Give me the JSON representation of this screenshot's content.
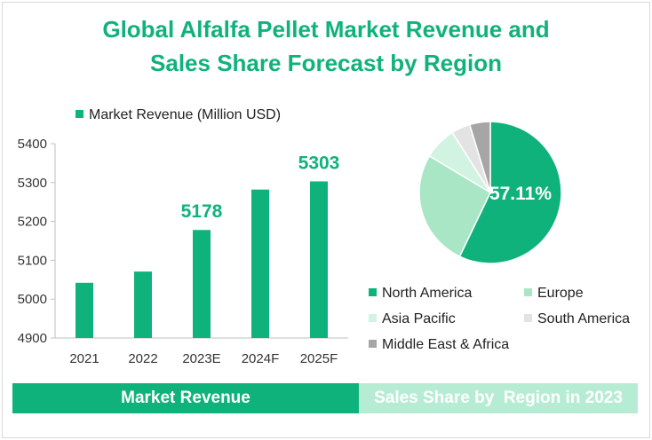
{
  "title_lines": [
    "Global Alfalfa Pellet Market Revenue and",
    "Sales Share Forecast by Region"
  ],
  "footer": {
    "left_label": "Market Revenue",
    "right_label": "Sales Share by  Region in 2023"
  },
  "colors": {
    "accent": "#10b27c",
    "accent_light": "#b7ecd4"
  },
  "chart_data": [
    {
      "type": "bar",
      "categories": [
        "2021",
        "2022",
        "2023E",
        "2024F",
        "2025F"
      ],
      "series": [
        {
          "name": "Market Revenue (Million USD)",
          "values": [
            5042,
            5071,
            5178,
            5282,
            5303
          ],
          "color": "#10b27c"
        }
      ],
      "data_labels": [
        {
          "index": 2,
          "text": "5178"
        },
        {
          "index": 4,
          "text": "5303"
        }
      ],
      "yticks": [
        "4900",
        "5000",
        "5100",
        "5200",
        "5300",
        "5400"
      ],
      "ylim": [
        4900,
        5400
      ],
      "grid": false,
      "legend": "top"
    },
    {
      "type": "pie",
      "categories": [
        "North America",
        "Europe",
        "Asia Pacific",
        "South America",
        "Middle East & Africa"
      ],
      "values": [
        57.11,
        26.5,
        7.4,
        4.3,
        4.69
      ],
      "colors": [
        "#10b27c",
        "#a8e6c6",
        "#d2f2e2",
        "#e3e3e3",
        "#a6a6a6"
      ],
      "data_labels": [
        {
          "index": 0,
          "text": "57.11%"
        }
      ],
      "legend": "bottom"
    }
  ]
}
